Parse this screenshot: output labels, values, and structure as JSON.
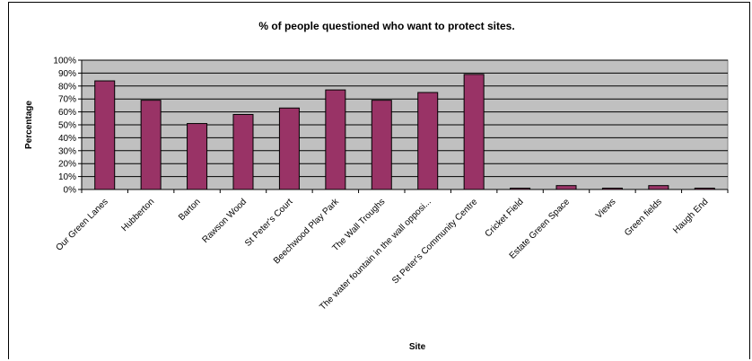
{
  "chart_data": {
    "type": "bar",
    "title": "% of people questioned who want to protect sites.",
    "xlabel": "Site",
    "ylabel": "Percentage",
    "ylim": [
      0,
      100
    ],
    "yticks": [
      "0%",
      "10%",
      "20%",
      "30%",
      "40%",
      "50%",
      "60%",
      "70%",
      "80%",
      "90%",
      "100%"
    ],
    "categories": [
      "Our Green Lanes",
      "Hubberton",
      "Barton",
      "Rawson Wood",
      "St Peter's Court",
      "Beechwood Play Park",
      "The Wall Troughs",
      "The water fountain in the wall opposi...",
      "St Peter's Community Centre",
      "Cricket Field",
      "Estate Green Space",
      "Views",
      "Green fields",
      "Haugh End"
    ],
    "values": [
      84,
      69,
      51,
      58,
      63,
      77,
      69,
      75,
      89,
      1,
      3,
      1,
      3,
      1
    ],
    "grid": true,
    "legend": "none",
    "colors": {
      "bar": "#993366",
      "plot_background": "#c0c0c0",
      "gridline": "#000000"
    }
  }
}
